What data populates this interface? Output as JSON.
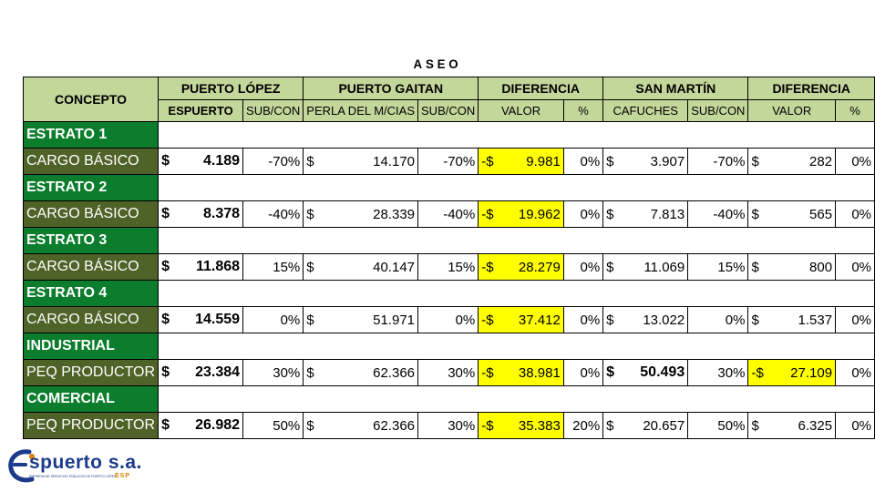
{
  "title": "ASEO",
  "headers": {
    "concepto": "CONCEPTO",
    "puerto_lopez": "PUERTO LÓPEZ",
    "puerto_gaitan": "PUERTO GAITAN",
    "diferencia1": "DIFERENCIA",
    "san_martin": "SAN MARTÍN",
    "diferencia2": "DIFERENCIA"
  },
  "subheaders": [
    "ESPUERTO",
    "SUB/CON",
    "PERLA DEL M/CIAS",
    "SUB/CON",
    "VALOR",
    "%",
    "CAFUCHES",
    "SUB/CON",
    "VALOR",
    "%"
  ],
  "sections": [
    {
      "name": "ESTRATO 1",
      "row": {
        "label": "CARGO BÁSICO",
        "c1": "4.189",
        "c2": "-70%",
        "c3": "14.170",
        "c4": "-70%",
        "c5": "9.981",
        "c6": "0%",
        "c7": "3.907",
        "c8": "-70%",
        "c9": "282",
        "c10": "0%"
      }
    },
    {
      "name": "ESTRATO 2",
      "row": {
        "label": "CARGO BÁSICO",
        "c1": "8.378",
        "c2": "-40%",
        "c3": "28.339",
        "c4": "-40%",
        "c5": "19.962",
        "c6": "0%",
        "c7": "7.813",
        "c8": "-40%",
        "c9": "565",
        "c10": "0%"
      }
    },
    {
      "name": "ESTRATO 3",
      "row": {
        "label": "CARGO BÁSICO",
        "c1": "11.868",
        "c2": "15%",
        "c3": "40.147",
        "c4": "15%",
        "c5": "28.279",
        "c6": "0%",
        "c7": "11.069",
        "c8": "15%",
        "c9": "800",
        "c10": "0%"
      }
    },
    {
      "name": "ESTRATO 4",
      "row": {
        "label": "CARGO BÁSICO",
        "c1": "14.559",
        "c2": "0%",
        "c3": "51.971",
        "c4": "0%",
        "c5": "37.412",
        "c6": "0%",
        "c7": "13.022",
        "c8": "0%",
        "c9": "1.537",
        "c10": "0%"
      }
    },
    {
      "name": "INDUSTRIAL",
      "row": {
        "label": "PEQ PRODUCTOR",
        "c1": "23.384",
        "c2": "30%",
        "c3": "62.366",
        "c4": "30%",
        "c5": "38.981",
        "c6": "0%",
        "c7": "50.493",
        "c8": "30%",
        "c9": "27.109",
        "c10": "0%"
      }
    },
    {
      "name": "COMERCIAL",
      "row": {
        "label": "PEQ PRODUCTOR",
        "c1": "26.982",
        "c2": "50%",
        "c3": "62.366",
        "c4": "30%",
        "c5": "35.383",
        "c6": "20%",
        "c7": "20.657",
        "c8": "50%",
        "c9": "6.325",
        "c10": "0%"
      }
    }
  ],
  "symbols": {
    "dollar": "$",
    "neg_dollar": "-$"
  },
  "logo": {
    "name": "spuerto s.a.",
    "tagline": "EMPRESA DE SERVICIOS PÚBLICOS DE PUERTO LÓPEZ",
    "esp": "ESP"
  },
  "colors": {
    "header_bg": "#c4d79b",
    "section_bg": "#0b7d2c",
    "label_bg": "#4f6228",
    "highlight": "#ffff00"
  }
}
